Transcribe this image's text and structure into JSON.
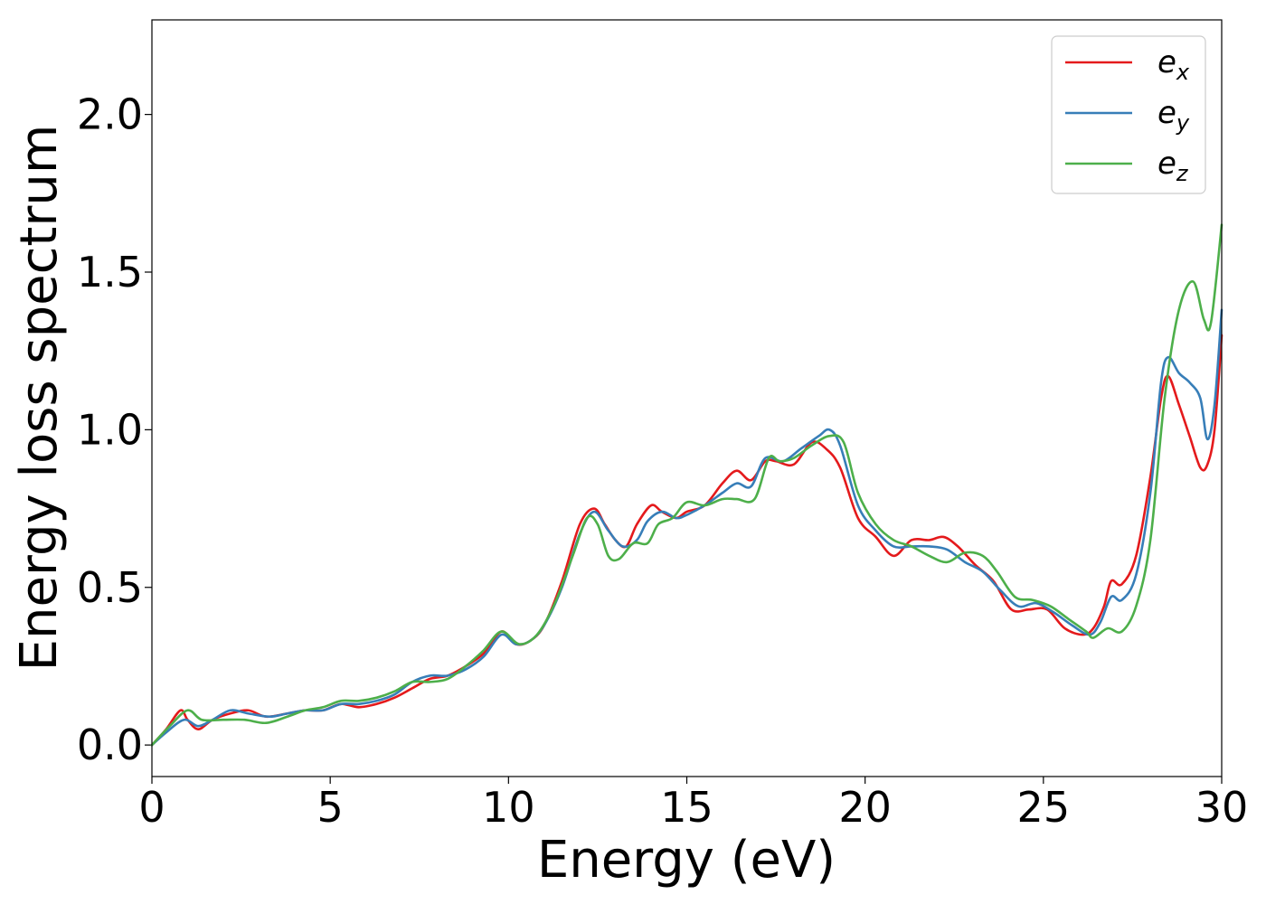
{
  "chart_data": {
    "type": "line",
    "title": "",
    "xlabel": "Energy (eV)",
    "ylabel": "Energy loss spectrum",
    "xlim": [
      0,
      30
    ],
    "ylim": [
      -0.1,
      2.3
    ],
    "xticks": [
      0,
      5,
      10,
      15,
      20,
      25,
      30
    ],
    "xtick_labels": [
      "0",
      "5",
      "10",
      "15",
      "20",
      "25",
      "30"
    ],
    "yticks": [
      0.0,
      0.5,
      1.0,
      1.5,
      2.0
    ],
    "ytick_labels": [
      "0.0",
      "0.5",
      "1.0",
      "1.5",
      "2.0"
    ],
    "grid": false,
    "legend_position": "top-right",
    "series": [
      {
        "name": "e_x",
        "legend_main": "e",
        "legend_sub": "x",
        "color": "#e41a1c",
        "x": [
          0,
          0.4,
          0.8,
          1.0,
          1.3,
          1.7,
          2.2,
          2.7,
          3.2,
          3.8,
          4.3,
          4.8,
          5.3,
          5.8,
          6.3,
          6.8,
          7.3,
          7.8,
          8.3,
          8.8,
          9.3,
          9.8,
          10.2,
          10.6,
          11.0,
          11.5,
          12.0,
          12.4,
          12.7,
          13.0,
          13.3,
          13.6,
          14.0,
          14.3,
          14.7,
          15.0,
          15.5,
          16.0,
          16.4,
          16.8,
          17.2,
          17.5,
          18.0,
          18.5,
          18.9,
          19.3,
          19.8,
          20.3,
          20.8,
          21.3,
          21.8,
          22.2,
          22.6,
          23.1,
          23.6,
          24.1,
          24.6,
          25.1,
          25.6,
          26.1,
          26.4,
          26.7,
          26.9,
          27.2,
          27.6,
          28.0,
          28.3,
          28.5,
          28.8,
          29.1,
          29.4,
          29.6,
          29.8,
          30.0
        ],
        "y": [
          0.0,
          0.05,
          0.11,
          0.08,
          0.05,
          0.08,
          0.1,
          0.11,
          0.09,
          0.1,
          0.11,
          0.11,
          0.13,
          0.12,
          0.13,
          0.15,
          0.18,
          0.21,
          0.22,
          0.25,
          0.29,
          0.36,
          0.32,
          0.33,
          0.38,
          0.52,
          0.7,
          0.75,
          0.7,
          0.65,
          0.63,
          0.7,
          0.76,
          0.74,
          0.72,
          0.74,
          0.76,
          0.83,
          0.87,
          0.84,
          0.9,
          0.9,
          0.89,
          0.96,
          0.94,
          0.88,
          0.72,
          0.66,
          0.6,
          0.65,
          0.65,
          0.66,
          0.63,
          0.57,
          0.52,
          0.43,
          0.43,
          0.43,
          0.37,
          0.35,
          0.37,
          0.44,
          0.52,
          0.51,
          0.6,
          0.85,
          1.1,
          1.17,
          1.08,
          0.98,
          0.88,
          0.89,
          1.0,
          1.3
        ]
      },
      {
        "name": "e_y",
        "legend_main": "e",
        "legend_sub": "y",
        "color": "#377eb8",
        "x": [
          0,
          0.4,
          0.9,
          1.3,
          1.7,
          2.2,
          2.7,
          3.3,
          3.8,
          4.3,
          4.8,
          5.3,
          5.8,
          6.3,
          6.8,
          7.3,
          7.8,
          8.3,
          8.8,
          9.3,
          9.8,
          10.2,
          10.6,
          11.0,
          11.5,
          12.0,
          12.4,
          12.8,
          13.2,
          13.6,
          13.9,
          14.3,
          14.7,
          15.0,
          15.5,
          16.0,
          16.4,
          16.8,
          17.2,
          17.7,
          18.2,
          18.7,
          19.0,
          19.3,
          19.8,
          20.3,
          20.8,
          21.3,
          21.8,
          22.3,
          22.8,
          23.3,
          23.8,
          24.3,
          24.8,
          25.3,
          25.8,
          26.3,
          26.6,
          26.9,
          27.2,
          27.6,
          28.0,
          28.3,
          28.5,
          28.8,
          29.1,
          29.4,
          29.6,
          29.8,
          30.0
        ],
        "y": [
          0.0,
          0.04,
          0.08,
          0.06,
          0.08,
          0.11,
          0.1,
          0.09,
          0.1,
          0.11,
          0.11,
          0.13,
          0.13,
          0.14,
          0.16,
          0.2,
          0.22,
          0.22,
          0.24,
          0.28,
          0.35,
          0.32,
          0.33,
          0.38,
          0.5,
          0.67,
          0.74,
          0.68,
          0.63,
          0.65,
          0.71,
          0.74,
          0.72,
          0.73,
          0.76,
          0.8,
          0.83,
          0.82,
          0.91,
          0.9,
          0.94,
          0.98,
          1.0,
          0.95,
          0.76,
          0.68,
          0.63,
          0.63,
          0.63,
          0.62,
          0.58,
          0.55,
          0.49,
          0.44,
          0.45,
          0.42,
          0.38,
          0.35,
          0.39,
          0.47,
          0.46,
          0.54,
          0.8,
          1.15,
          1.23,
          1.18,
          1.15,
          1.1,
          0.97,
          1.08,
          1.38
        ]
      },
      {
        "name": "e_z",
        "legend_main": "e",
        "legend_sub": "z",
        "color": "#4daf4a",
        "x": [
          0,
          0.5,
          1.0,
          1.4,
          2.0,
          2.6,
          3.2,
          3.8,
          4.3,
          4.8,
          5.3,
          5.8,
          6.3,
          6.8,
          7.3,
          7.8,
          8.3,
          8.8,
          9.3,
          9.8,
          10.3,
          10.8,
          11.3,
          11.8,
          12.2,
          12.5,
          12.8,
          13.1,
          13.5,
          13.9,
          14.2,
          14.6,
          15.0,
          15.5,
          16.0,
          16.4,
          16.9,
          17.3,
          17.6,
          18.0,
          18.5,
          19.0,
          19.4,
          19.8,
          20.3,
          20.8,
          21.3,
          21.8,
          22.3,
          22.8,
          23.3,
          23.7,
          24.2,
          24.7,
          25.2,
          25.7,
          26.2,
          26.4,
          26.8,
          27.2,
          27.6,
          28.0,
          28.4,
          28.8,
          29.2,
          29.5,
          29.7,
          30.0
        ],
        "y": [
          0.0,
          0.06,
          0.11,
          0.08,
          0.08,
          0.08,
          0.07,
          0.09,
          0.11,
          0.12,
          0.14,
          0.14,
          0.15,
          0.17,
          0.2,
          0.2,
          0.21,
          0.25,
          0.3,
          0.36,
          0.32,
          0.35,
          0.45,
          0.6,
          0.72,
          0.7,
          0.6,
          0.59,
          0.64,
          0.64,
          0.7,
          0.72,
          0.77,
          0.76,
          0.78,
          0.78,
          0.78,
          0.91,
          0.9,
          0.91,
          0.95,
          0.98,
          0.96,
          0.8,
          0.7,
          0.65,
          0.63,
          0.6,
          0.58,
          0.61,
          0.6,
          0.55,
          0.47,
          0.46,
          0.44,
          0.4,
          0.36,
          0.34,
          0.37,
          0.36,
          0.44,
          0.65,
          1.1,
          1.38,
          1.47,
          1.35,
          1.34,
          1.65
        ]
      }
    ]
  }
}
